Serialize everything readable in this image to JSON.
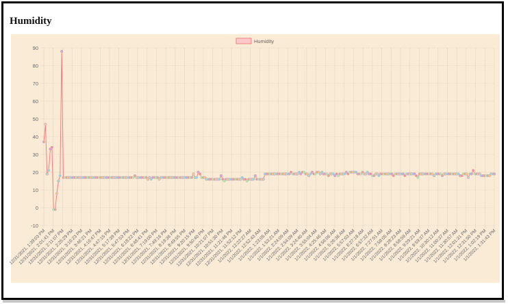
{
  "page": {
    "title": "Humidity"
  },
  "colors": {
    "background": "#faebd7",
    "line": "#f08080",
    "legend_fill": "#ffc8c8",
    "legend_border": "#f08080",
    "point_palette": [
      "#f4a582",
      "#f9c97f",
      "#a8dcd0",
      "#9ec9ec",
      "#c6a8e8",
      "#f28ab0",
      "#b7e3a1"
    ],
    "grid": "#e4d6c0",
    "tick_text": "#666666"
  },
  "chart_data": {
    "type": "line",
    "title": "",
    "xlabel": "",
    "ylabel": "",
    "legend": {
      "labels": [
        "Humidity"
      ],
      "position": "top-center"
    },
    "grid": true,
    "ylim": [
      -10,
      90
    ],
    "yticks": [
      -10,
      0,
      10,
      20,
      30,
      40,
      50,
      60,
      70,
      80,
      90
    ],
    "x_tick_labels": [
      "12/31/2021, 1:39:03 PM",
      "12/31/2021, 2:01:41 PM",
      "12/31/2021, 2:11:07 PM",
      "12/31/2021, 2:25:29 PM",
      "12/31/2021, 3:16:23 PM",
      "12/31/2021, 3:46:21 PM",
      "12/31/2021, 4:16:47 PM",
      "12/31/2021, 4:47:15 PM",
      "12/31/2021, 5:17:39 PM",
      "12/31/2021, 5:47:53 PM",
      "12/31/2021, 6:18:22 PM",
      "12/31/2021, 6:48:41 PM",
      "12/31/2021, 7:19:00 PM",
      "12/31/2021, 7:49:16 PM",
      "12/31/2021, 8:19:36 PM",
      "12/31/2021, 8:49:55 PM",
      "12/31/2021, 9:20:15 PM",
      "12/31/2021, 9:50:40 PM",
      "12/31/2021, 10:21:07 PM",
      "12/31/2021, 10:51:30 PM",
      "12/31/2021, 11:21:46 PM",
      "12/31/2021, 11:52:12 PM",
      "1/1/2022, 12:22:27 AM",
      "1/1/2022, 12:52:43 AM",
      "1/1/2022, 1:23:05 AM",
      "1/1/2022, 1:53:21 AM",
      "1/1/2022, 2:24:09 AM",
      "1/1/2022, 2:54:09 AM",
      "1/1/2022, 3:24:40 AM",
      "1/1/2022, 3:55:04 AM",
      "1/1/2022, 4:25:46 AM",
      "1/1/2022, 4:56:06 AM",
      "1/1/2022, 5:26:36 AM",
      "1/1/2022, 5:57:03 AM",
      "1/1/2022, 6:27:18 AM",
      "1/1/2022, 6:57:32 AM",
      "1/1/2022, 7:27:51 AM",
      "1/1/2022, 7:58:05 AM",
      "1/1/2022, 8:28:23 AM",
      "1/1/2022, 8:58:59 AM",
      "1/1/2022, 9:29:21 AM",
      "1/1/2022, 9:59:37 AM",
      "1/1/2022, 10:30:12 AM",
      "1/1/2022, 11:00:37 AM",
      "1/1/2022, 11:30:57 AM",
      "1/1/2022, 12:01:31 PM",
      "1/1/2022, 12:31:50 PM",
      "1/1/2022, 1:02:19 PM",
      "1/1/2022, 1:31:43 PM"
    ],
    "series": [
      {
        "name": "Humidity",
        "values": [
          37,
          47,
          19,
          21,
          33,
          34,
          -1,
          -1,
          8,
          15,
          18,
          88,
          17,
          17,
          17,
          17,
          17,
          17,
          17,
          17,
          17,
          17,
          17,
          17,
          17,
          17,
          17,
          17,
          17,
          17,
          17,
          17,
          17,
          17,
          17,
          17,
          17,
          17,
          17,
          17,
          17,
          17,
          17,
          17,
          17,
          17,
          17,
          17,
          17,
          17,
          17,
          17,
          17,
          17,
          17,
          17,
          18,
          17,
          17,
          17,
          17,
          17,
          17,
          17,
          16,
          17,
          16,
          17,
          17,
          17,
          17,
          16,
          17,
          17,
          17,
          17,
          17,
          17,
          17,
          17,
          17,
          17,
          17,
          17,
          17,
          17,
          17,
          17,
          17,
          17,
          17,
          17,
          19,
          17,
          17,
          20,
          19,
          17,
          17,
          17,
          16,
          16,
          16,
          16,
          16,
          16,
          16,
          16,
          16,
          18,
          16,
          15,
          16,
          16,
          16,
          16,
          16,
          16,
          16,
          16,
          16,
          16,
          17,
          16,
          16,
          15,
          16,
          16,
          16,
          16,
          18,
          16,
          16,
          16,
          16,
          16,
          19,
          19,
          19,
          19,
          19,
          19,
          19,
          19,
          19,
          19,
          19,
          19,
          19,
          19,
          19,
          19,
          20,
          19,
          19,
          19,
          19,
          20,
          19,
          20,
          20,
          19,
          19,
          18,
          19,
          20,
          19,
          19,
          20,
          20,
          19,
          20,
          19,
          19,
          19,
          18,
          19,
          19,
          19,
          18,
          19,
          18,
          19,
          19,
          19,
          19,
          20,
          19,
          20,
          20,
          20,
          20,
          20,
          19,
          19,
          19,
          20,
          19,
          19,
          20,
          19,
          19,
          18,
          18,
          19,
          19,
          18,
          19,
          19,
          19,
          19,
          19,
          19,
          19,
          19,
          18,
          19,
          19,
          19,
          19,
          19,
          19,
          18,
          19,
          19,
          19,
          19,
          19,
          19,
          18,
          17,
          19,
          19,
          19,
          19,
          19,
          19,
          19,
          19,
          19,
          18,
          19,
          19,
          19,
          19,
          18,
          19,
          19,
          19,
          19,
          19,
          19,
          19,
          19,
          19,
          19,
          18,
          18,
          19,
          19,
          19,
          17,
          19,
          19,
          21,
          19,
          19,
          19,
          19,
          18,
          18,
          18,
          18,
          18,
          18,
          19,
          19,
          19
        ]
      }
    ]
  }
}
